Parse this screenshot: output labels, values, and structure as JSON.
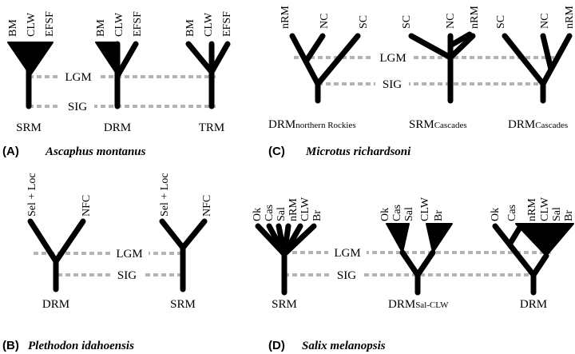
{
  "panels": {
    "A": {
      "letter": "(A)",
      "species": "Ascaphus montanus",
      "trees": [
        {
          "tips": [
            "BM",
            "CLW",
            "EFSF"
          ],
          "label": "SRM"
        },
        {
          "tips": [
            "BM",
            "CLW",
            "EFSF"
          ],
          "label": "DRM"
        },
        {
          "tips": [
            "BM",
            "CLW",
            "EFSF"
          ],
          "label": "TRM"
        }
      ],
      "markers": {
        "lgm": "LGM",
        "sig": "SIG"
      }
    },
    "B": {
      "letter": "(B)",
      "species": "Plethodon idahoensis",
      "trees": [
        {
          "tips": [
            "Sel + Loc",
            "NFC"
          ],
          "label": "DRM"
        },
        {
          "tips": [
            "Sel + Loc",
            "NFC"
          ],
          "label": "SRM"
        }
      ],
      "markers": {
        "lgm": "LGM",
        "sig": "SIG"
      }
    },
    "C": {
      "letter": "(C)",
      "species": "Microtus richardsoni",
      "trees": [
        {
          "tips": [
            "nRM",
            "NC",
            "SC"
          ],
          "label_main": "DRM",
          "label_sub": "northern Rockies"
        },
        {
          "tips": [
            "SC",
            "NC",
            "nRM"
          ],
          "label_main": "SRM",
          "label_sub": "Cascades"
        },
        {
          "tips": [
            "SC",
            "NC",
            "nRM"
          ],
          "label_main": "DRM",
          "label_sub": "Cascades"
        }
      ],
      "markers": {
        "lgm": "LGM",
        "sig": "SIG"
      }
    },
    "D": {
      "letter": "(D)",
      "species": "Salix melanopsis",
      "trees": [
        {
          "tips": [
            "Ok",
            "Cas",
            "Sal",
            "nRM",
            "CLW",
            "Br"
          ],
          "label_main": "SRM",
          "label_sub": ""
        },
        {
          "tips": [
            "Ok",
            "Cas",
            "Sal",
            "CLW",
            "Br"
          ],
          "label_main": "DRM",
          "label_sub": "Sal-CLW"
        },
        {
          "tips": [
            "Ok",
            "Cas",
            "nRM",
            "CLW",
            "Sal",
            "Br"
          ],
          "label_main": "DRM",
          "label_sub": ""
        }
      ],
      "markers": {
        "lgm": "LGM",
        "sig": "SIG"
      }
    }
  }
}
